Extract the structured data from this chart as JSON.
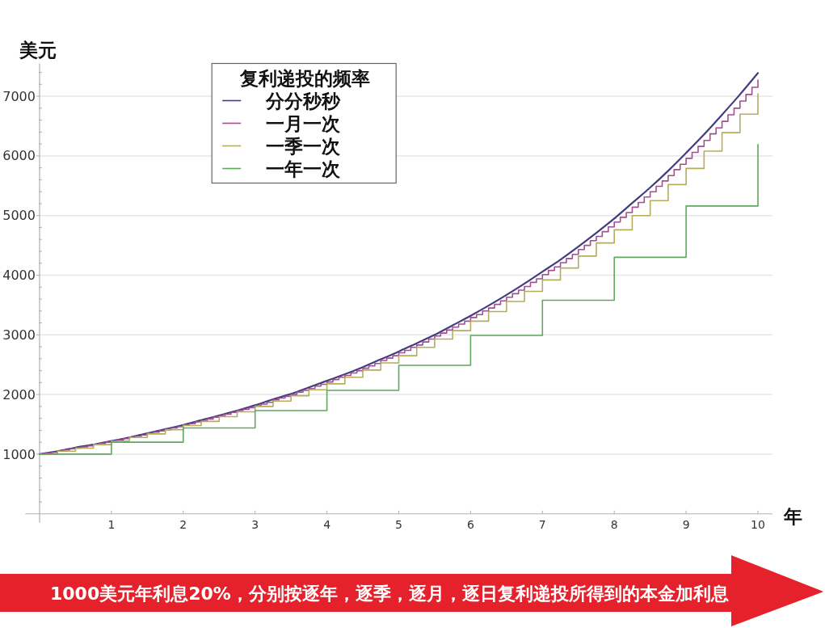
{
  "chart_data": {
    "type": "line",
    "xlabel": "年",
    "ylabel": "美元",
    "legend_title": "复利递投的频率",
    "annotations": [
      "1000美元年利息20%，分别按逐年，逐季，逐月，逐日复利递投所得到的本金加利息"
    ],
    "xlim": [
      -0.2,
      10.2
    ],
    "ylim": [
      -150,
      7550
    ],
    "xticks": [
      1,
      2,
      3,
      4,
      5,
      6,
      7,
      8,
      9,
      10
    ],
    "yticks": [
      {
        "value": 200,
        "label": null
      },
      {
        "value": 400,
        "label": null
      },
      {
        "value": 600,
        "label": null
      },
      {
        "value": 800,
        "label": null
      },
      1000,
      {
        "value": 1200,
        "label": null
      },
      {
        "value": 1400,
        "label": null
      },
      {
        "value": 1600,
        "label": null
      },
      {
        "value": 1800,
        "label": null
      },
      2000,
      {
        "value": 2200,
        "label": null
      },
      {
        "value": 2400,
        "label": null
      },
      {
        "value": 2600,
        "label": null
      },
      {
        "value": 2800,
        "label": null
      },
      3000,
      {
        "value": 3200,
        "label": null
      },
      {
        "value": 3400,
        "label": null
      },
      {
        "value": 3600,
        "label": null
      },
      {
        "value": 3800,
        "label": null
      },
      4000,
      {
        "value": 4200,
        "label": null
      },
      {
        "value": 4400,
        "label": null
      },
      {
        "value": 4600,
        "label": null
      },
      {
        "value": 4800,
        "label": null
      },
      5000,
      {
        "value": 5200,
        "label": null
      },
      {
        "value": 5400,
        "label": null
      },
      {
        "value": 5600,
        "label": null
      },
      {
        "value": 5800,
        "label": null
      },
      6000,
      {
        "value": 6200,
        "label": null
      },
      {
        "value": 6400,
        "label": null
      },
      {
        "value": 6600,
        "label": null
      },
      {
        "value": 6800,
        "label": null
      },
      7000,
      {
        "value": 7200,
        "label": null
      },
      {
        "value": 7400,
        "label": null
      }
    ],
    "grid": "y",
    "legend": "top left",
    "series": [
      {
        "name": "分分秒秒",
        "color": "#453c80",
        "x": [
          0,
          0.25,
          0.5,
          0.75,
          1,
          1.25,
          1.5,
          1.75,
          2,
          2.25,
          2.5,
          2.75,
          3,
          3.25,
          3.5,
          3.75,
          4,
          4.25,
          4.5,
          4.75,
          5,
          5.25,
          5.5,
          5.75,
          6,
          6.25,
          6.5,
          6.75,
          7,
          7.25,
          7.5,
          7.75,
          8,
          8.25,
          8.5,
          8.75,
          9,
          9.25,
          9.5,
          9.75,
          10
        ],
        "values": [
          1000,
          1050,
          1110,
          1160,
          1220,
          1280,
          1350,
          1420,
          1490,
          1570,
          1650,
          1730,
          1820,
          1920,
          2010,
          2120,
          2230,
          2340,
          2460,
          2590,
          2720,
          2860,
          3000,
          3160,
          3320,
          3490,
          3670,
          3860,
          4060,
          4260,
          4480,
          4710,
          4950,
          5210,
          5470,
          5750,
          6050,
          6360,
          6690,
          7030,
          7390
        ]
      },
      {
        "name": "一月一次",
        "type": "step",
        "color": "#a0508f",
        "x": [
          0,
          0.083,
          0.167,
          0.25,
          0.333,
          0.417,
          0.5,
          0.583,
          0.667,
          0.75,
          0.833,
          0.917,
          1,
          1.083,
          1.167,
          1.25,
          1.333,
          1.417,
          1.5,
          1.583,
          1.667,
          1.75,
          1.833,
          1.917,
          2,
          2.083,
          2.167,
          2.25,
          2.333,
          2.417,
          2.5,
          2.583,
          2.667,
          2.75,
          2.833,
          2.917,
          3,
          3.083,
          3.167,
          3.25,
          3.333,
          3.417,
          3.5,
          3.583,
          3.667,
          3.75,
          3.833,
          3.917,
          4,
          4.083,
          4.167,
          4.25,
          4.333,
          4.417,
          4.5,
          4.583,
          4.667,
          4.75,
          4.833,
          4.917,
          5,
          5.083,
          5.167,
          5.25,
          5.333,
          5.417,
          5.5,
          5.583,
          5.667,
          5.75,
          5.833,
          5.917,
          6,
          6.083,
          6.167,
          6.25,
          6.333,
          6.417,
          6.5,
          6.583,
          6.667,
          6.75,
          6.833,
          6.917,
          7,
          7.083,
          7.167,
          7.25,
          7.333,
          7.417,
          7.5,
          7.583,
          7.667,
          7.75,
          7.833,
          7.917,
          8,
          8.083,
          8.167,
          8.25,
          8.333,
          8.417,
          8.5,
          8.583,
          8.667,
          8.75,
          8.833,
          8.917,
          9,
          9.083,
          9.167,
          9.25,
          9.333,
          9.417,
          9.5,
          9.583,
          9.667,
          9.75,
          9.833,
          9.917,
          10
        ],
        "values": [
          1000,
          1020,
          1030,
          1050,
          1070,
          1090,
          1100,
          1120,
          1140,
          1160,
          1180,
          1200,
          1220,
          1240,
          1260,
          1280,
          1300,
          1320,
          1350,
          1370,
          1390,
          1410,
          1440,
          1460,
          1490,
          1510,
          1540,
          1560,
          1590,
          1620,
          1640,
          1670,
          1700,
          1730,
          1750,
          1780,
          1810,
          1840,
          1870,
          1910,
          1940,
          1970,
          2000,
          2040,
          2070,
          2100,
          2140,
          2170,
          2210,
          2250,
          2290,
          2320,
          2360,
          2400,
          2440,
          2480,
          2520,
          2570,
          2610,
          2650,
          2700,
          2740,
          2790,
          2830,
          2880,
          2930,
          2980,
          3030,
          3080,
          3130,
          3180,
          3230,
          3290,
          3340,
          3400,
          3450,
          3510,
          3570,
          3630,
          3690,
          3750,
          3810,
          3880,
          3940,
          4010,
          4080,
          4140,
          4210,
          4280,
          4350,
          4430,
          4500,
          4580,
          4650,
          4730,
          4810,
          4890,
          4970,
          5050,
          5140,
          5220,
          5310,
          5400,
          5490,
          5580,
          5670,
          5770,
          5860,
          5960,
          6060,
          6160,
          6260,
          6370,
          6470,
          6580,
          6690,
          6800,
          6920,
          7030,
          7150,
          7270
        ]
      },
      {
        "name": "一季一次",
        "type": "step",
        "color": "#b5ac5c",
        "x": [
          0,
          0.25,
          0.5,
          0.75,
          1,
          1.25,
          1.5,
          1.75,
          2,
          2.25,
          2.5,
          2.75,
          3,
          3.25,
          3.5,
          3.75,
          4,
          4.25,
          4.5,
          4.75,
          5,
          5.25,
          5.5,
          5.75,
          6,
          6.25,
          6.5,
          6.75,
          7,
          7.25,
          7.5,
          7.75,
          8,
          8.25,
          8.5,
          8.75,
          9,
          9.25,
          9.5,
          9.75,
          10
        ],
        "values": [
          1000,
          1050,
          1100,
          1160,
          1220,
          1280,
          1340,
          1410,
          1480,
          1550,
          1630,
          1710,
          1800,
          1890,
          1980,
          2080,
          2180,
          2290,
          2410,
          2530,
          2650,
          2790,
          2930,
          3070,
          3230,
          3390,
          3560,
          3730,
          3920,
          4120,
          4320,
          4540,
          4760,
          5000,
          5250,
          5520,
          5790,
          6080,
          6390,
          6700,
          7040
        ]
      },
      {
        "name": "一年一次",
        "type": "step",
        "color": "#5fa85f",
        "x": [
          0,
          1,
          2,
          3,
          4,
          5,
          6,
          7,
          8,
          9,
          10
        ],
        "values": [
          1000,
          1200,
          1440,
          1730,
          2070,
          2490,
          2990,
          3580,
          4300,
          5160,
          6190
        ]
      }
    ]
  }
}
